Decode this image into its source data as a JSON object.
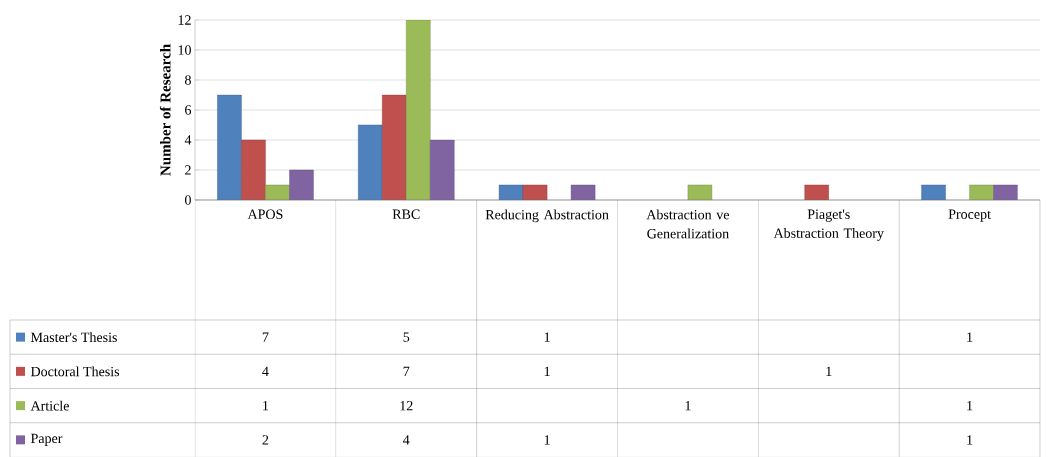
{
  "chart_data": {
    "type": "bar",
    "ylabel": "Number of Research",
    "categories": [
      "APOS",
      "RBC",
      "Reducing Abstraction",
      "Abstraction ve Generalization",
      "Piaget's Abstraction Theory",
      "Procept"
    ],
    "series": [
      {
        "name": "Master's Thesis",
        "color": "#4f81bd",
        "values": [
          7,
          5,
          1,
          null,
          null,
          1
        ]
      },
      {
        "name": "Doctoral Thesis",
        "color": "#c0504d",
        "values": [
          4,
          7,
          1,
          null,
          1,
          null
        ]
      },
      {
        "name": "Article",
        "color": "#9bbb59",
        "values": [
          1,
          12,
          null,
          1,
          null,
          1
        ]
      },
      {
        "name": "Paper",
        "color": "#8064a2",
        "values": [
          2,
          4,
          1,
          null,
          null,
          1
        ]
      }
    ],
    "ylim": [
      0,
      12
    ],
    "yticks": [
      0,
      2,
      4,
      6,
      8,
      10,
      12
    ],
    "grid": "y",
    "legend": "bottom left",
    "data_labels": true
  }
}
